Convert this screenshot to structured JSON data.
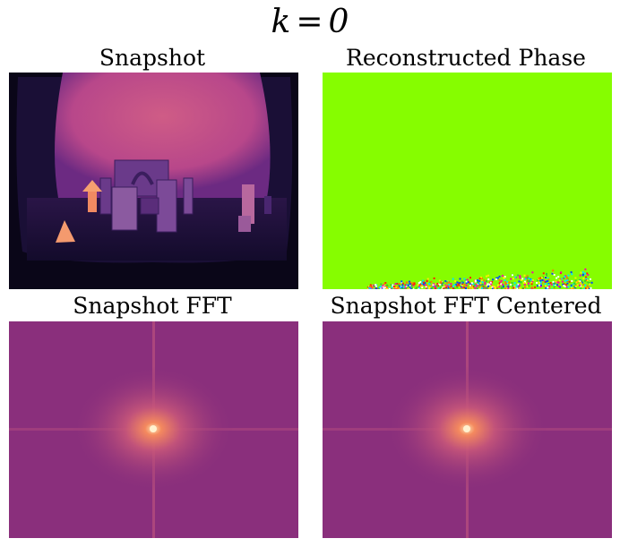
{
  "figure": {
    "title_var": "k",
    "title_eq": "=",
    "title_val": "0"
  },
  "panels": [
    {
      "title": "Snapshot",
      "content": "infrared scene of blocks and arch"
    },
    {
      "title": "Reconstructed Phase",
      "content": "uniform green phase map with noisy bottom edge"
    },
    {
      "title": "Snapshot FFT",
      "content": "magnitude spectrum, centered bright spot"
    },
    {
      "title": "Snapshot FFT Centered",
      "content": "magnitude spectrum, centered bright spot"
    }
  ],
  "colors": {
    "colormap_dark": "#0e0721",
    "colormap_mid": "#8a2f7c",
    "colormap_pink": "#c7567a",
    "colormap_bright": "#fcd3a0",
    "phase_green": "#86fd00"
  }
}
